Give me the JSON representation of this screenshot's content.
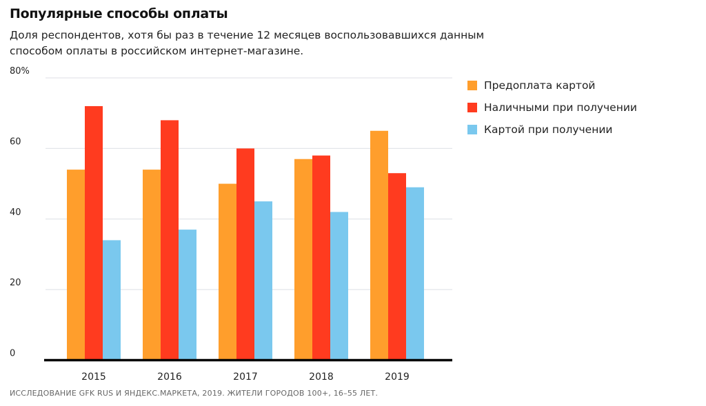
{
  "title": "Популярные способы оплаты",
  "subtitle": "Доля респондентов, хотя бы раз в течение 12 месяцев воспользовавшихся данным способом оплаты в российском интернет-магазине.",
  "source": "ИССЛЕДОВАНИЕ GFK RUS И ЯНДЕКС.МАРКЕТА, 2019. ЖИТЕЛИ ГОРОДОВ 100+, 16–55 ЛЕТ.",
  "chart_data": {
    "type": "bar",
    "title": "Популярные способы оплаты",
    "xlabel": "",
    "ylabel": "",
    "categories": [
      "2015",
      "2016",
      "2017",
      "2018",
      "2019"
    ],
    "series": [
      {
        "name": "Предоплата картой",
        "color": "#FF9E2C",
        "values": [
          54,
          54,
          50,
          57,
          65
        ]
      },
      {
        "name": "Наличными при получении",
        "color": "#FF3B1F",
        "values": [
          72,
          68,
          60,
          58,
          53
        ]
      },
      {
        "name": "Картой при получении",
        "color": "#7AC8EE",
        "values": [
          34,
          37,
          45,
          42,
          49
        ]
      }
    ],
    "ylim": [
      0,
      80
    ],
    "yticks": [
      0,
      20,
      40,
      60,
      80
    ],
    "ytick_labels": [
      "0",
      "20",
      "40",
      "60",
      "80%"
    ],
    "grid": true,
    "legend": "right"
  }
}
